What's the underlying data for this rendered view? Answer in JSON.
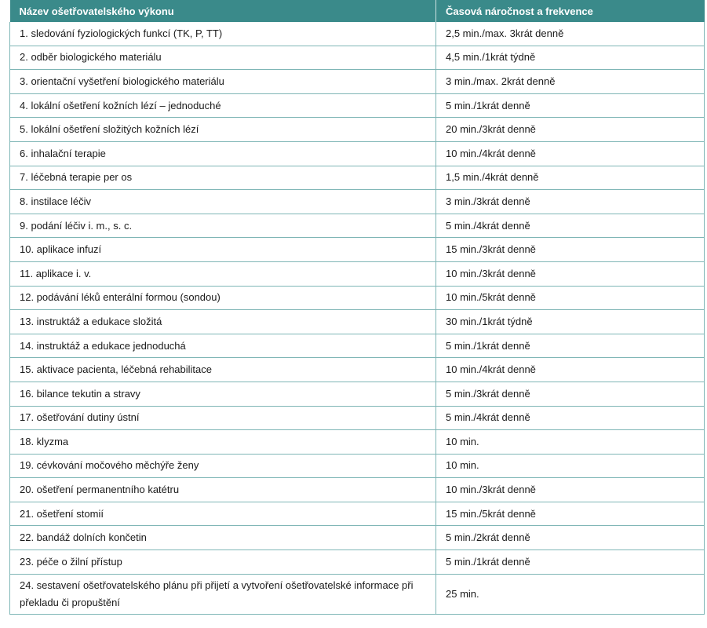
{
  "table": {
    "headers": [
      "Název ošetřovatelského výkonu",
      "Časová náročnost a frekvence"
    ],
    "rows": [
      [
        "1. sledování fyziologických funkcí (TK, P, TT)",
        "2,5 min./max. 3krát denně"
      ],
      [
        "2. odběr biologického materiálu",
        "4,5 min./1krát týdně"
      ],
      [
        "3. orientační vyšetření biologického materiálu",
        "3 min./max. 2krát denně"
      ],
      [
        "4. lokální ošetření kožních lézí – jednoduché",
        "5 min./1krát denně"
      ],
      [
        "5. lokální ošetření složitých kožních lézí",
        "20 min./3krát denně"
      ],
      [
        "6. inhalační terapie",
        "10 min./4krát denně"
      ],
      [
        "7. léčebná terapie per os",
        "1,5 min./4krát denně"
      ],
      [
        "8. instilace léčiv",
        "3 min./3krát denně"
      ],
      [
        "9. podání léčiv i. m., s. c.",
        "5 min./4krát denně"
      ],
      [
        "10. aplikace infuzí",
        "15 min./3krát denně"
      ],
      [
        "11. aplikace i. v.",
        "10 min./3krát denně"
      ],
      [
        "12. podávání léků enterální formou (sondou)",
        "10 min./5krát denně"
      ],
      [
        "13. instruktáž a edukace složitá",
        "30 min./1krát týdně"
      ],
      [
        "14. instruktáž a edukace jednoduchá",
        "5  min./1krát denně"
      ],
      [
        "15. aktivace pacienta, léčebná rehabilitace",
        "10 min./4krát denně"
      ],
      [
        "16. bilance tekutin a stravy",
        "5 min./3krát denně"
      ],
      [
        "17. ošetřování dutiny ústní",
        "5 min./4krát denně"
      ],
      [
        "18. klyzma",
        "10 min."
      ],
      [
        "19. cévkování močového měchýře ženy",
        "10 min."
      ],
      [
        "20. ošetření permanentního katétru",
        "10 min./3krát denně"
      ],
      [
        "21. ošetření stomií",
        "15 min./5krát denně"
      ],
      [
        "22. bandáž dolních končetin",
        "5 min./2krát denně"
      ],
      [
        "23. péče o žilní přístup",
        "5 min./1krát denně"
      ],
      [
        "24. sestavení ošetřovatelského plánu při přijetí a vytvoření ošetřovatelské informace při překladu či propuštění",
        "25 min."
      ]
    ]
  },
  "colors": {
    "header_bg": "#3a8a8a",
    "border": "#7fb6b6"
  }
}
